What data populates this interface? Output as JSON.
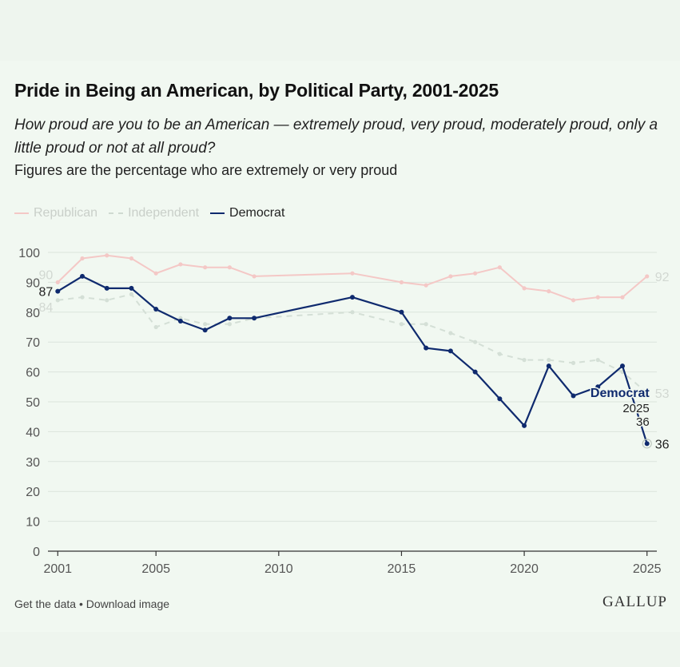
{
  "chart_data": {
    "type": "line",
    "title": "Pride in Being an American, by Political Party, 2001-2025",
    "subtitle": "How proud are you to be an American — extremely proud, very proud, moderately proud, only a little proud or not at all proud?",
    "note": "Figures are the percentage who are extremely or very proud",
    "ylim": [
      0,
      100
    ],
    "yticks": [
      0,
      10,
      20,
      30,
      40,
      50,
      60,
      70,
      80,
      90,
      100
    ],
    "xticks": [
      2001,
      2005,
      2010,
      2015,
      2020,
      2025
    ],
    "xlim": [
      2000.6,
      2025.4
    ],
    "grid": true,
    "legend": "top-left",
    "series": [
      {
        "name": "Republican",
        "color": "#f4c8c6",
        "style": "solid",
        "points": [
          [
            2001,
            90
          ],
          [
            2002,
            98
          ],
          [
            2003,
            99
          ],
          [
            2004,
            98
          ],
          [
            2005,
            93
          ],
          [
            2006,
            96
          ],
          [
            2007,
            95
          ],
          [
            2008,
            95
          ],
          [
            2009,
            92
          ],
          [
            2013,
            93
          ],
          [
            2015,
            90
          ],
          [
            2016,
            89
          ],
          [
            2017,
            92
          ],
          [
            2018,
            93
          ],
          [
            2019,
            95
          ],
          [
            2020,
            88
          ],
          [
            2021,
            87
          ],
          [
            2022,
            84
          ],
          [
            2023,
            85
          ],
          [
            2024,
            85
          ],
          [
            2025,
            92
          ]
        ],
        "start_label": "90",
        "end_label": "92"
      },
      {
        "name": "Independent",
        "color": "#d4dfd6",
        "style": "dashed",
        "points": [
          [
            2001,
            84
          ],
          [
            2002,
            85
          ],
          [
            2003,
            84
          ],
          [
            2004,
            86
          ],
          [
            2005,
            75
          ],
          [
            2006,
            78
          ],
          [
            2007,
            76
          ],
          [
            2008,
            76
          ],
          [
            2009,
            78
          ],
          [
            2013,
            80
          ],
          [
            2015,
            76
          ],
          [
            2016,
            76
          ],
          [
            2017,
            73
          ],
          [
            2018,
            70
          ],
          [
            2019,
            66
          ],
          [
            2020,
            64
          ],
          [
            2021,
            64
          ],
          [
            2022,
            63
          ],
          [
            2023,
            64
          ],
          [
            2024,
            60
          ],
          [
            2025,
            53
          ]
        ],
        "start_label": "84",
        "end_label": "53"
      },
      {
        "name": "Democrat",
        "color": "#0f2a6e",
        "style": "solid",
        "points": [
          [
            2001,
            87
          ],
          [
            2002,
            92
          ],
          [
            2003,
            88
          ],
          [
            2004,
            88
          ],
          [
            2005,
            81
          ],
          [
            2006,
            77
          ],
          [
            2007,
            74
          ],
          [
            2008,
            78
          ],
          [
            2009,
            78
          ],
          [
            2013,
            85
          ],
          [
            2015,
            80
          ],
          [
            2016,
            68
          ],
          [
            2017,
            67
          ],
          [
            2018,
            60
          ],
          [
            2019,
            51
          ],
          [
            2020,
            42
          ],
          [
            2021,
            62
          ],
          [
            2022,
            52
          ],
          [
            2023,
            55
          ],
          [
            2024,
            62
          ],
          [
            2025,
            36
          ]
        ],
        "start_label": "87",
        "end_label": "36"
      }
    ],
    "tooltip": {
      "series": "Democrat",
      "year": "2025",
      "value": "36"
    }
  },
  "footer": {
    "get_data": "Get the data",
    "separator": " • ",
    "download": "Download image",
    "brand": "GALLUP"
  }
}
